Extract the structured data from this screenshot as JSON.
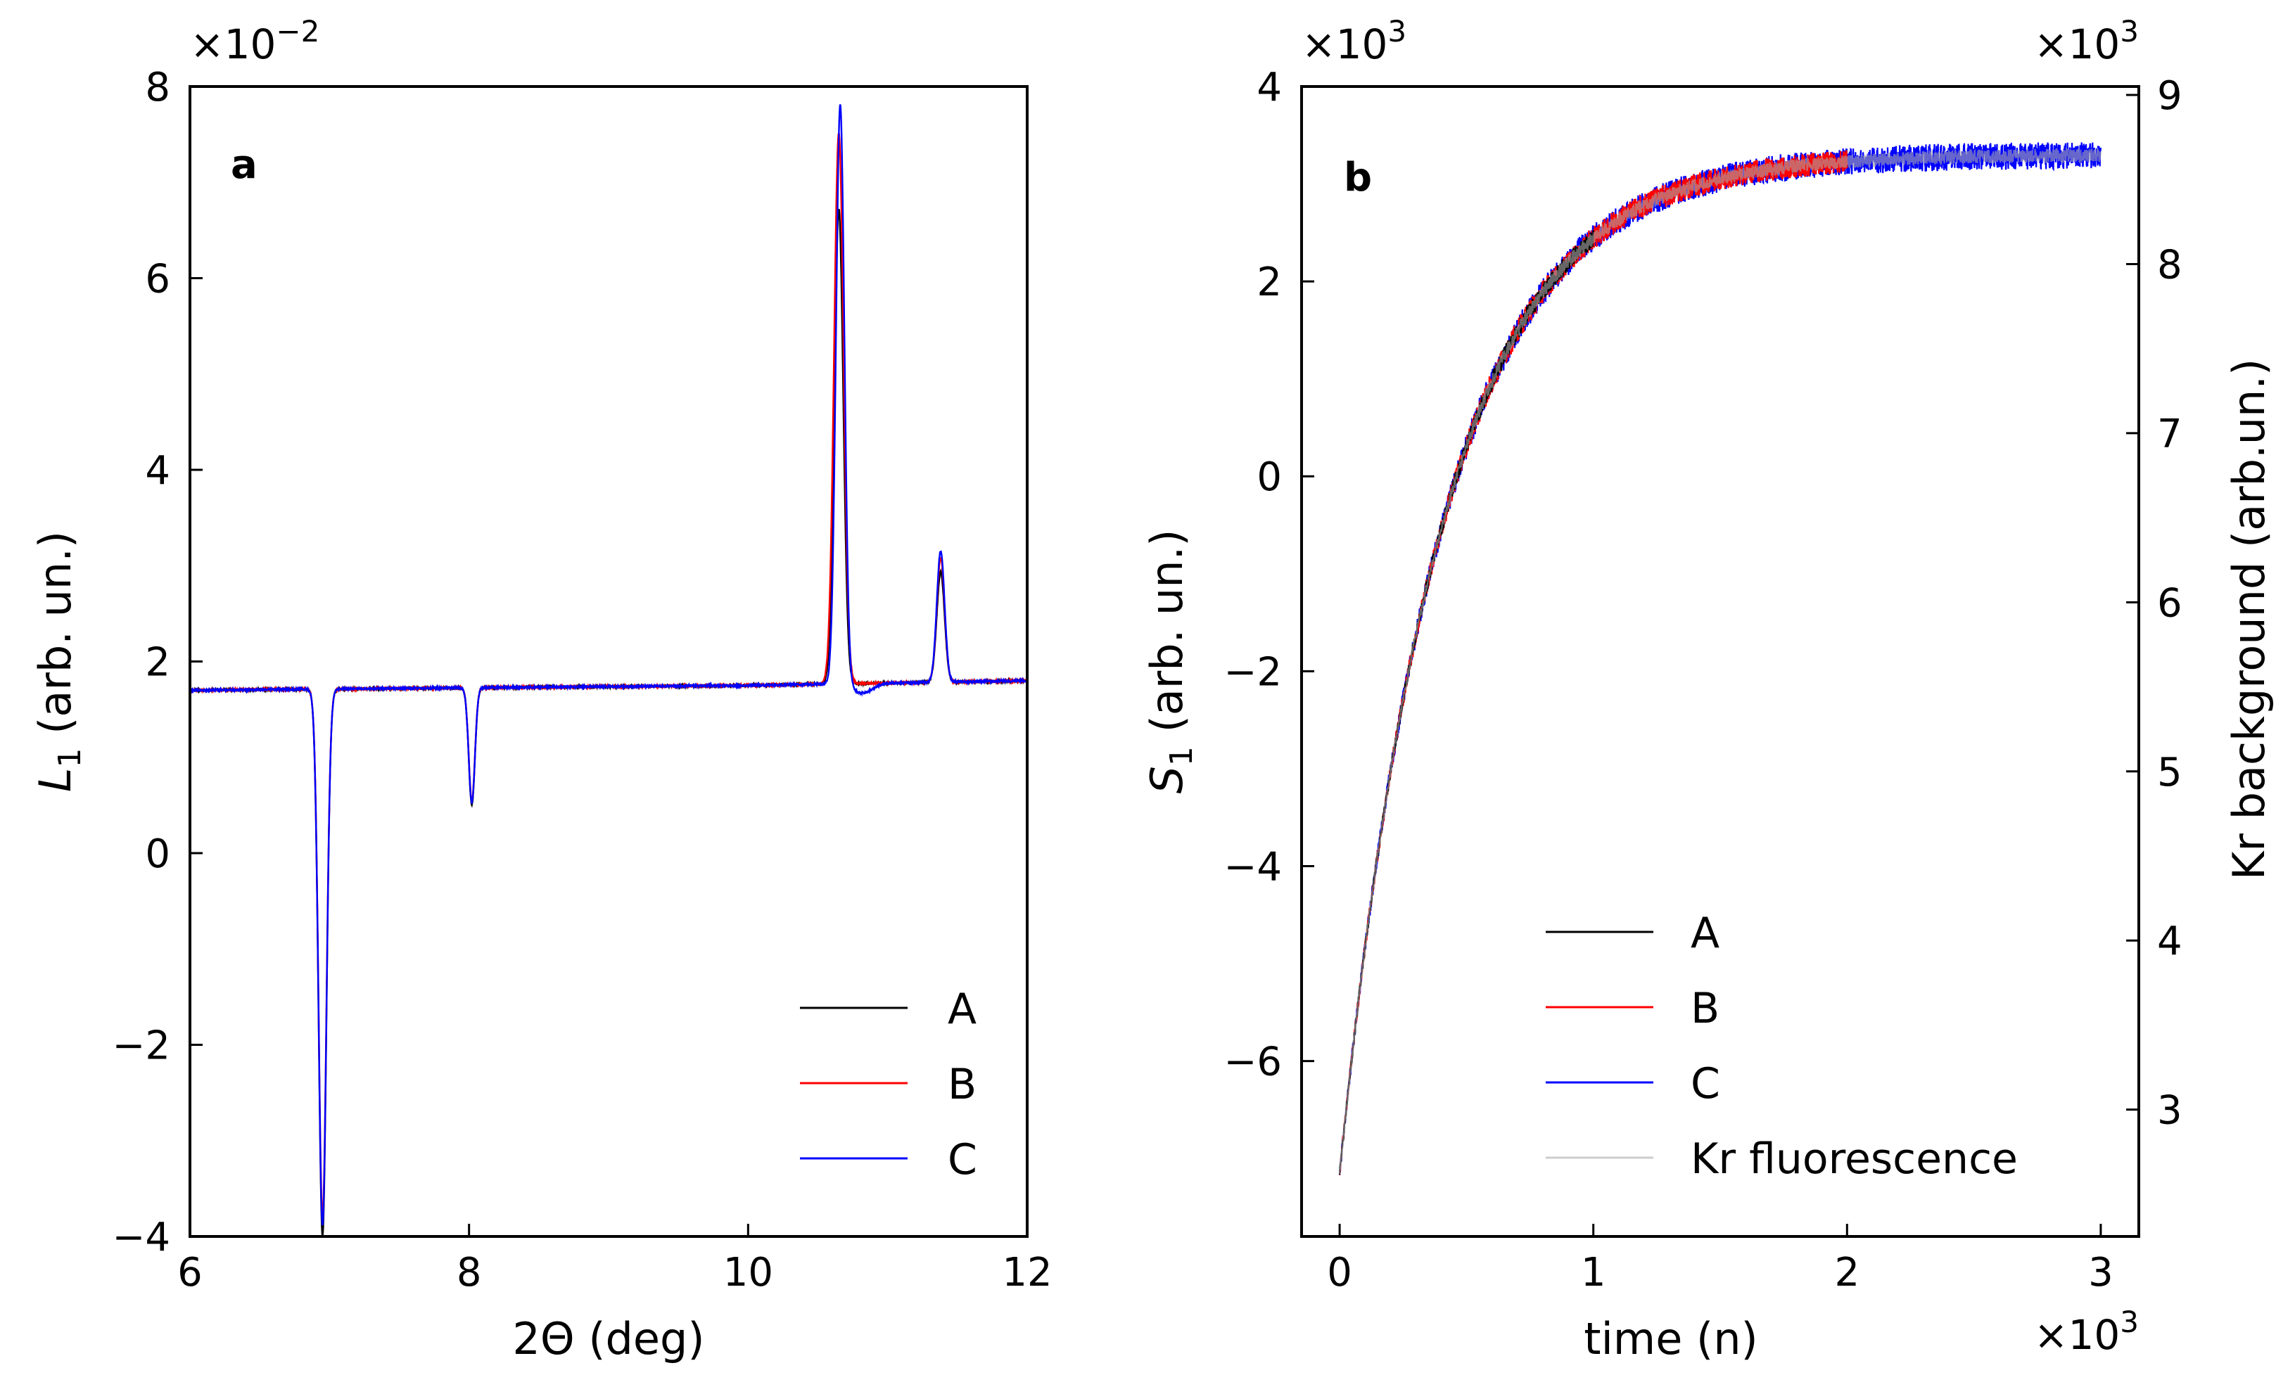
{
  "chart_data": [
    {
      "id": "a",
      "type": "line",
      "panel_label": "a",
      "xlabel": "2Θ (deg)",
      "ylabel_main": "L",
      "ylabel_sub": "1",
      "ylabel_rest": " (arb. un.)",
      "y_multiplier_base": "×10",
      "y_multiplier_exp": "−2",
      "xlim": [
        6,
        12
      ],
      "ylim": [
        -4,
        8
      ],
      "x_ticks": [
        {
          "v": 6,
          "label": "6"
        },
        {
          "v": 8,
          "label": "8"
        },
        {
          "v": 10,
          "label": "10"
        },
        {
          "v": 12,
          "label": "12"
        }
      ],
      "y_ticks": [
        {
          "v": -4,
          "label": "−4"
        },
        {
          "v": -2,
          "label": "−2"
        },
        {
          "v": 0,
          "label": "0"
        },
        {
          "v": 2,
          "label": "2"
        },
        {
          "v": 4,
          "label": "4"
        },
        {
          "v": 6,
          "label": "6"
        },
        {
          "v": 8,
          "label": "8"
        }
      ],
      "baseline": {
        "x": [
          6,
          10,
          12
        ],
        "y": [
          1.7,
          1.75,
          1.8
        ]
      },
      "series": [
        {
          "name": "A",
          "color": "#000000",
          "noise": 0.02,
          "peaks": [
            {
              "c": 6.95,
              "a": -5.7,
              "w": 0.028
            },
            {
              "c": 8.02,
              "a": -1.22,
              "w": 0.022
            },
            {
              "c": 10.65,
              "a": 4.95,
              "w": 0.032
            },
            {
              "c": 11.38,
              "a": 1.15,
              "w": 0.028
            }
          ]
        },
        {
          "name": "B",
          "color": "#ff0000",
          "noise": 0.02,
          "peaks": [
            {
              "c": 6.95,
              "a": -5.5,
              "w": 0.028
            },
            {
              "c": 8.02,
              "a": -1.18,
              "w": 0.022
            },
            {
              "c": 10.65,
              "a": 5.75,
              "w": 0.034
            },
            {
              "c": 11.38,
              "a": 1.3,
              "w": 0.028
            }
          ]
        },
        {
          "name": "C",
          "color": "#0000ff",
          "noise": 0.02,
          "peaks": [
            {
              "c": 6.95,
              "a": -5.6,
              "w": 0.028
            },
            {
              "c": 8.02,
              "a": -1.2,
              "w": 0.022
            },
            {
              "c": 10.66,
              "a": 6.05,
              "w": 0.03
            },
            {
              "c": 10.82,
              "a": -0.1,
              "w": 0.07
            },
            {
              "c": 11.38,
              "a": 1.37,
              "w": 0.028
            }
          ]
        }
      ],
      "legend": {
        "position": "lower-right",
        "entries": [
          "A",
          "B",
          "C"
        ]
      }
    },
    {
      "id": "b",
      "type": "line",
      "panel_label": "b",
      "xlabel": "time (n)",
      "ylabel_main": "S",
      "ylabel_sub": "1",
      "ylabel_rest": " (arb. un.)",
      "y2label": "Kr background (arb.un.)",
      "x_multiplier_base": "×10",
      "x_multiplier_exp": "3",
      "y_multiplier_base": "×10",
      "y_multiplier_exp": "3",
      "y2_multiplier_base": "×10",
      "y2_multiplier_exp": "3",
      "xlim": [
        -0.15,
        3.15
      ],
      "ylim": [
        -7.8,
        4
      ],
      "y2lim": [
        2.25,
        9.05
      ],
      "x_ticks": [
        {
          "v": 0,
          "label": "0"
        },
        {
          "v": 1,
          "label": "1"
        },
        {
          "v": 2,
          "label": "2"
        },
        {
          "v": 3,
          "label": "3"
        }
      ],
      "y_ticks": [
        {
          "v": -6,
          "label": "−6"
        },
        {
          "v": -4,
          "label": "−4"
        },
        {
          "v": -2,
          "label": "−2"
        },
        {
          "v": 0,
          "label": "0"
        },
        {
          "v": 2,
          "label": "2"
        },
        {
          "v": 4,
          "label": "4"
        }
      ],
      "y2_ticks": [
        {
          "v": 3,
          "label": "3"
        },
        {
          "v": 4,
          "label": "4"
        },
        {
          "v": 5,
          "label": "5"
        },
        {
          "v": 6,
          "label": "6"
        },
        {
          "v": 7,
          "label": "7"
        },
        {
          "v": 8,
          "label": "8"
        },
        {
          "v": 9,
          "label": "9"
        }
      ],
      "model": {
        "asymptote": 3.3,
        "amplitude": 10.45,
        "tau": 0.4
      },
      "series": [
        {
          "name": "A",
          "color": "#000000",
          "x_range": [
            0,
            1
          ],
          "noise": 0.09
        },
        {
          "name": "B",
          "color": "#ff0000",
          "x_range": [
            0,
            2
          ],
          "noise": 0.12
        },
        {
          "name": "C",
          "color": "#0000ff",
          "x_range": [
            0,
            3
          ],
          "noise": 0.14
        },
        {
          "name": "Kr fluorescence",
          "color": "#aaaaaa",
          "x_range": [
            0,
            3
          ],
          "noise": 0.07,
          "alpha": 0.6
        }
      ],
      "legend": {
        "position": "lower-right",
        "entries": [
          "A",
          "B",
          "C",
          "Kr fluorescence"
        ]
      }
    }
  ]
}
